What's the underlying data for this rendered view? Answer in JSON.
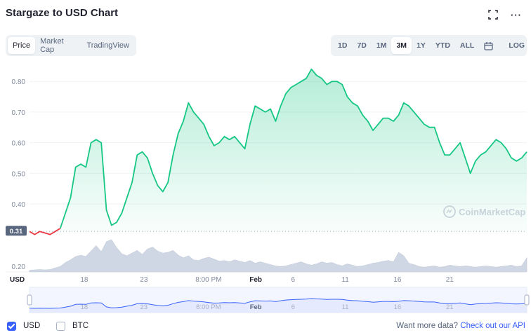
{
  "header": {
    "title": "Stargaze to USD Chart",
    "fullscreen_icon": "fullscreen-icon",
    "more_icon": "more-horizontal-icon"
  },
  "view_tabs": [
    {
      "label": "Price",
      "active": true
    },
    {
      "label": "Market Cap",
      "active": false
    },
    {
      "label": "TradingView",
      "active": false
    }
  ],
  "range_buttons": [
    {
      "label": "1D",
      "active": false
    },
    {
      "label": "7D",
      "active": false
    },
    {
      "label": "1M",
      "active": false
    },
    {
      "label": "3M",
      "active": true
    },
    {
      "label": "1Y",
      "active": false
    },
    {
      "label": "YTD",
      "active": false
    },
    {
      "label": "ALL",
      "active": false
    }
  ],
  "calendar_icon": "calendar-icon",
  "log_label": "LOG",
  "watermark": "CoinMarketCap",
  "colors": {
    "up": "#16c784",
    "down": "#ea3943",
    "accent": "#3861fb",
    "volume": "#cfd6e4",
    "navigator_line": "#3861fb"
  },
  "chart_data": {
    "type": "area",
    "currency_label": "USD",
    "y_ticks": [
      "0.80",
      "0.70",
      "0.60",
      "0.50",
      "0.40"
    ],
    "y_ticks_values": [
      0.8,
      0.7,
      0.6,
      0.5,
      0.4
    ],
    "ylim": [
      0.29,
      0.86
    ],
    "volume_tick": "0.20",
    "baseline_label": "0.31",
    "baseline_value": 0.31,
    "x_ticks": [
      "18",
      "23",
      "8:00 PM",
      "Feb",
      "6",
      "11",
      "16",
      "21"
    ],
    "x_ticks_bold": [
      false,
      false,
      false,
      true,
      false,
      false,
      false,
      false
    ],
    "x_ticks_t": [
      0.11,
      0.23,
      0.36,
      0.455,
      0.53,
      0.635,
      0.74,
      0.845
    ],
    "price_series": [
      0.31,
      0.3,
      0.31,
      0.305,
      0.3,
      0.31,
      0.32,
      0.37,
      0.42,
      0.52,
      0.53,
      0.52,
      0.6,
      0.61,
      0.6,
      0.38,
      0.33,
      0.34,
      0.37,
      0.42,
      0.47,
      0.56,
      0.57,
      0.55,
      0.5,
      0.46,
      0.44,
      0.47,
      0.56,
      0.63,
      0.67,
      0.73,
      0.7,
      0.68,
      0.66,
      0.62,
      0.59,
      0.6,
      0.62,
      0.61,
      0.62,
      0.6,
      0.58,
      0.66,
      0.72,
      0.71,
      0.7,
      0.71,
      0.67,
      0.72,
      0.76,
      0.78,
      0.79,
      0.8,
      0.81,
      0.84,
      0.82,
      0.81,
      0.79,
      0.8,
      0.8,
      0.79,
      0.75,
      0.73,
      0.72,
      0.69,
      0.67,
      0.64,
      0.66,
      0.68,
      0.68,
      0.67,
      0.69,
      0.73,
      0.72,
      0.7,
      0.68,
      0.66,
      0.65,
      0.65,
      0.6,
      0.56,
      0.56,
      0.58,
      0.6,
      0.55,
      0.5,
      0.54,
      0.56,
      0.57,
      0.59,
      0.61,
      0.6,
      0.58,
      0.55,
      0.54,
      0.55,
      0.57
    ],
    "volume_series": [
      0.5,
      0.6,
      0.7,
      0.6,
      0.7,
      1.2,
      1.6,
      2.8,
      3.6,
      4.6,
      5.0,
      4.6,
      6.2,
      7.8,
      6.0,
      9.0,
      9.6,
      7.2,
      5.4,
      4.8,
      5.6,
      6.4,
      5.2,
      6.8,
      7.4,
      6.2,
      5.6,
      5.8,
      6.4,
      5.0,
      4.2,
      4.8,
      3.6,
      3.4,
      4.0,
      4.4,
      3.8,
      3.2,
      3.4,
      3.0,
      3.6,
      3.2,
      2.8,
      3.4,
      2.6,
      3.0,
      2.6,
      2.2,
      1.8,
      1.6,
      1.8,
      2.2,
      2.6,
      3.0,
      2.4,
      2.0,
      2.4,
      3.0,
      2.6,
      2.8,
      2.2,
      1.8,
      2.4,
      2.0,
      1.6,
      1.8,
      2.2,
      2.6,
      2.8,
      3.2,
      3.4,
      3.0,
      5.8,
      4.8,
      2.6,
      2.2,
      1.6,
      1.4,
      1.6,
      1.8,
      1.4,
      1.6,
      2.0,
      1.8,
      1.6,
      1.8,
      1.6,
      1.4,
      1.6,
      1.8,
      1.6,
      1.4,
      1.6,
      1.8,
      2.0,
      1.6,
      1.8,
      4.2
    ]
  },
  "footer": {
    "usd_label": "USD",
    "usd_checked": true,
    "btc_label": "BTC",
    "btc_checked": false,
    "more_prefix": "Want more data?",
    "more_link": "Check out our API"
  }
}
